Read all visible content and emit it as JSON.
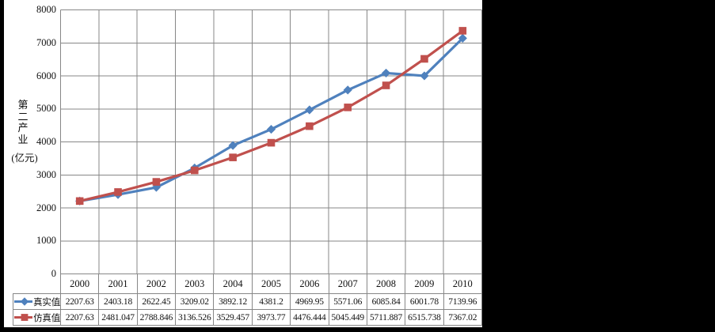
{
  "canvas": {
    "background": "#000000",
    "chart_background": "#ffffff"
  },
  "y_axis": {
    "title": "第二产业",
    "unit": "(亿元)",
    "ticks": [
      8000,
      7000,
      6000,
      5000,
      4000,
      3000,
      2000,
      1000,
      0
    ]
  },
  "chart_data": {
    "type": "line",
    "title": "",
    "xlabel": "",
    "ylabel": "第二产业(亿元)",
    "ylim": [
      0,
      8000
    ],
    "ytick_step": 1000,
    "grid": true,
    "gridline_color": "#878787",
    "legend_position": "table-left",
    "categories": [
      "2000",
      "2001",
      "2002",
      "2003",
      "2004",
      "2005",
      "2006",
      "2007",
      "2008",
      "2009",
      "2010"
    ],
    "series": [
      {
        "name": "真实值",
        "marker": "diamond",
        "color": "#4F81BD",
        "values": [
          2207.63,
          2403.18,
          2622.45,
          3209.02,
          3892.12,
          4381.2,
          4969.95,
          5571.06,
          6085.84,
          6001.78,
          7139.96
        ]
      },
      {
        "name": "仿真值",
        "marker": "square",
        "color": "#C0504D",
        "values": [
          2207.63,
          2481.047,
          2788.846,
          3136.526,
          3529.457,
          3973.77,
          4476.444,
          5045.449,
          5711.887,
          6515.738,
          7367.02
        ]
      }
    ]
  }
}
